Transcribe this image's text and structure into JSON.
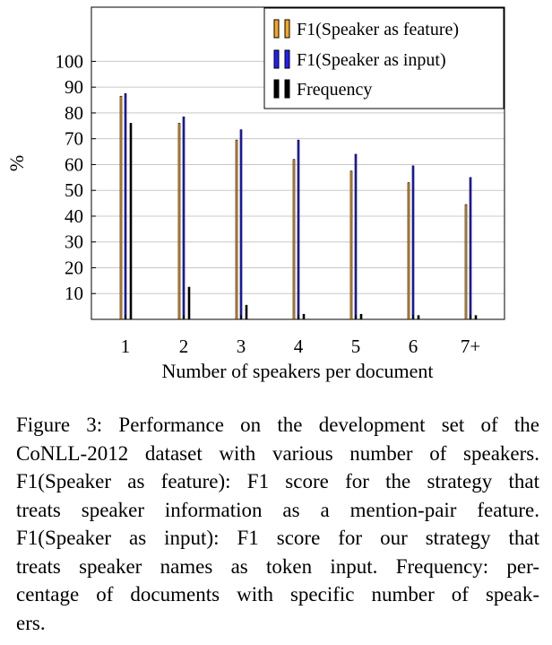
{
  "chart_data": {
    "type": "bar",
    "categories": [
      "1",
      "2",
      "3",
      "4",
      "5",
      "6",
      "7+"
    ],
    "series": [
      {
        "name": "F1(Speaker as feature)",
        "color": "#f5a623",
        "values": [
          86.5,
          76,
          69.5,
          62,
          57.5,
          53,
          44.5
        ]
      },
      {
        "name": "F1(Speaker as input)",
        "color": "#1f1fff",
        "values": [
          87.5,
          78.5,
          73.5,
          69.5,
          64,
          59.5,
          55
        ]
      },
      {
        "name": "Frequency",
        "color": "#000000",
        "values": [
          76,
          12.5,
          5.5,
          2,
          2,
          1.5,
          1.5
        ]
      }
    ],
    "xlabel": "Number of speakers per document",
    "ylabel": "%",
    "yticks": [
      10,
      20,
      30,
      40,
      50,
      60,
      70,
      80,
      90,
      100
    ],
    "ylim": [
      0,
      121
    ],
    "grid": "horizontal",
    "legend_position": "top-right"
  },
  "caption": {
    "lines": [
      "Figure 3: Performance on the development set of the",
      "CoNLL-2012 dataset with various number of speakers.",
      "F1(Speaker as feature): F1 score for the strategy that",
      "treats speaker information as a mention-pair feature.",
      "F1(Speaker as input): F1 score for our strategy that",
      "treats speaker names as token input. Frequency: per-",
      "centage of documents with specific number of speak-",
      "ers."
    ]
  }
}
